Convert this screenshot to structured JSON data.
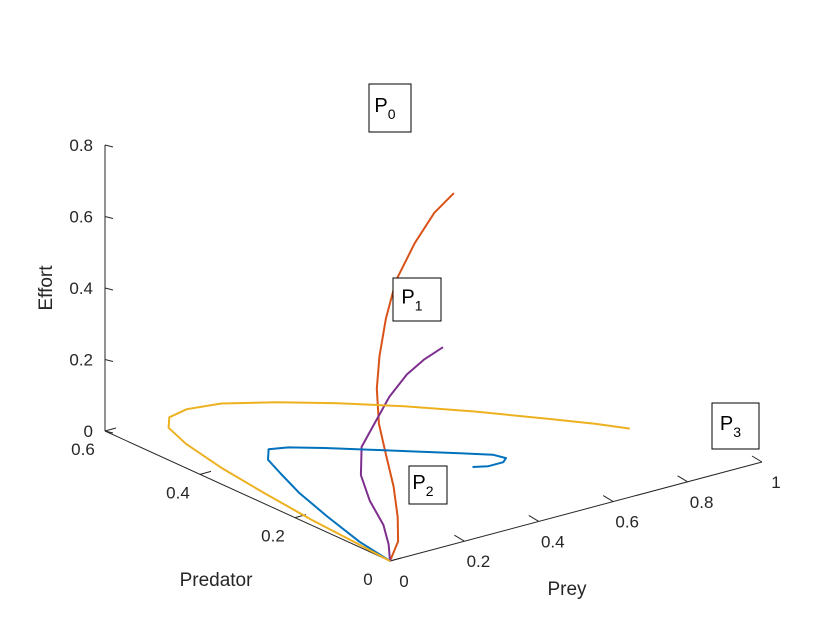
{
  "chart_data": {
    "type": "line3d",
    "axes": {
      "x": {
        "label": "Prey",
        "range": [
          0,
          1
        ],
        "ticks": [
          "0",
          "0.2",
          "0.4",
          "0.6",
          "0.8",
          "1"
        ]
      },
      "y": {
        "label": "Predator",
        "range": [
          0,
          0.6
        ],
        "ticks": [
          "0",
          "0.2",
          "0.4",
          "0.6"
        ]
      },
      "z": {
        "label": "Effort",
        "range": [
          0,
          0.8
        ],
        "ticks": [
          "0",
          "0.2",
          "0.4",
          "0.6",
          "0.8"
        ]
      }
    },
    "grid": false,
    "series": [
      {
        "color": "#D95319",
        "annotation": {
          "base": "P",
          "sub": "0"
        },
        "points": [
          [
            0.0,
            0.0,
            0.0
          ],
          [
            0.06,
            0.03,
            0.02
          ],
          [
            0.11,
            0.07,
            0.05
          ],
          [
            0.15,
            0.11,
            0.1
          ],
          [
            0.18,
            0.15,
            0.16
          ],
          [
            0.2,
            0.18,
            0.22
          ],
          [
            0.22,
            0.2,
            0.3
          ],
          [
            0.24,
            0.21,
            0.38
          ],
          [
            0.27,
            0.22,
            0.47
          ],
          [
            0.31,
            0.23,
            0.56
          ],
          [
            0.36,
            0.23,
            0.65
          ],
          [
            0.4,
            0.22,
            0.73
          ],
          [
            0.44,
            0.21,
            0.78
          ]
        ]
      },
      {
        "color": "#7E2F8E",
        "annotation": {
          "base": "P",
          "sub": "1"
        },
        "points": [
          [
            0.0,
            0.0,
            0.0
          ],
          [
            0.06,
            0.05,
            0.0
          ],
          [
            0.11,
            0.1,
            0.01
          ],
          [
            0.15,
            0.16,
            0.03
          ],
          [
            0.19,
            0.21,
            0.06
          ],
          [
            0.23,
            0.24,
            0.11
          ],
          [
            0.28,
            0.25,
            0.16
          ],
          [
            0.33,
            0.26,
            0.21
          ],
          [
            0.39,
            0.27,
            0.25
          ],
          [
            0.45,
            0.28,
            0.27
          ],
          [
            0.5,
            0.28,
            0.29
          ]
        ]
      },
      {
        "color": "#0072BD",
        "annotation": {
          "base": "P",
          "sub": "2"
        },
        "points": [
          [
            0.0,
            0.0,
            0.0
          ],
          [
            0.02,
            0.08,
            0.0
          ],
          [
            0.06,
            0.18,
            0.0
          ],
          [
            0.1,
            0.27,
            0.0
          ],
          [
            0.14,
            0.34,
            0.0
          ],
          [
            0.17,
            0.39,
            0.0
          ],
          [
            0.21,
            0.42,
            0.0
          ],
          [
            0.25,
            0.41,
            0.0
          ],
          [
            0.31,
            0.38,
            0.0
          ],
          [
            0.38,
            0.34,
            0.0
          ],
          [
            0.45,
            0.3,
            0.0
          ],
          [
            0.52,
            0.26,
            0.0
          ],
          [
            0.57,
            0.23,
            0.0
          ],
          [
            0.58,
            0.21,
            0.0
          ],
          [
            0.56,
            0.2,
            0.0
          ],
          [
            0.52,
            0.2,
            0.0
          ],
          [
            0.49,
            0.21,
            0.0
          ]
        ]
      },
      {
        "color": "#EDB120",
        "annotation": {
          "base": "P",
          "sub": "3"
        },
        "points": [
          [
            0.0,
            0.0,
            0.0
          ],
          [
            0.01,
            0.08,
            0.0
          ],
          [
            0.02,
            0.18,
            0.0
          ],
          [
            0.04,
            0.3,
            0.0
          ],
          [
            0.06,
            0.4,
            0.0
          ],
          [
            0.09,
            0.5,
            0.0
          ],
          [
            0.12,
            0.56,
            0.0
          ],
          [
            0.16,
            0.59,
            0.0
          ],
          [
            0.22,
            0.6,
            0.0
          ],
          [
            0.3,
            0.59,
            0.0
          ],
          [
            0.4,
            0.55,
            0.0
          ],
          [
            0.5,
            0.5,
            0.0
          ],
          [
            0.6,
            0.44,
            0.0
          ],
          [
            0.7,
            0.37,
            0.0
          ],
          [
            0.8,
            0.29,
            0.0
          ],
          [
            0.86,
            0.24,
            0.0
          ],
          [
            0.9,
            0.2,
            0.0
          ]
        ]
      }
    ]
  }
}
